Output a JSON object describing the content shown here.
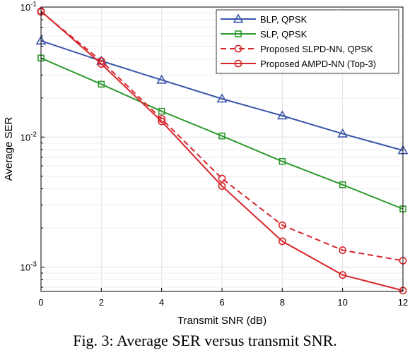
{
  "caption": "Fig. 3: Average SER versus transmit SNR.",
  "chart_data": {
    "type": "line",
    "xlabel": "Transmit SNR (dB)",
    "ylabel": "Average SER",
    "xlim": [
      0,
      12
    ],
    "ylim": [
      0.00065,
      0.1
    ],
    "yscale": "log",
    "grid": true,
    "legend_position": "top-right",
    "x_ticks": [
      "0",
      "2",
      "4",
      "6",
      "8",
      "10",
      "12"
    ],
    "y_ticks": [
      {
        "base": "10",
        "exp": "-1",
        "value": 0.1
      },
      {
        "base": "10",
        "exp": "-2",
        "value": 0.01
      },
      {
        "base": "10",
        "exp": "-3",
        "value": 0.001
      }
    ],
    "x": [
      0,
      2,
      4,
      6,
      8,
      10,
      12
    ],
    "series": [
      {
        "name": "BLP, QPSK",
        "color": "#3b55a8",
        "dash": false,
        "marker": "triangle",
        "values": [
          0.055,
          0.0385,
          0.0275,
          0.0197,
          0.0146,
          0.0106,
          0.0079
        ]
      },
      {
        "name": "SLP, QPSK",
        "color": "#2e9a2e",
        "dash": false,
        "marker": "square",
        "values": [
          0.0405,
          0.0255,
          0.0158,
          0.0102,
          0.0065,
          0.0043,
          0.0028
        ]
      },
      {
        "name": "Proposed SLPD-NN, QPSK",
        "color": "#d7262b",
        "dash": true,
        "marker": "circle",
        "values": [
          0.092,
          0.0385,
          0.0138,
          0.0048,
          0.0021,
          0.00135,
          0.00112
        ]
      },
      {
        "name": "Proposed AMPD-NN (Top-3)",
        "color": "#d7262b",
        "dash": false,
        "marker": "circle",
        "values": [
          0.093,
          0.0365,
          0.0132,
          0.0042,
          0.00158,
          0.00087,
          0.00066
        ]
      }
    ]
  }
}
